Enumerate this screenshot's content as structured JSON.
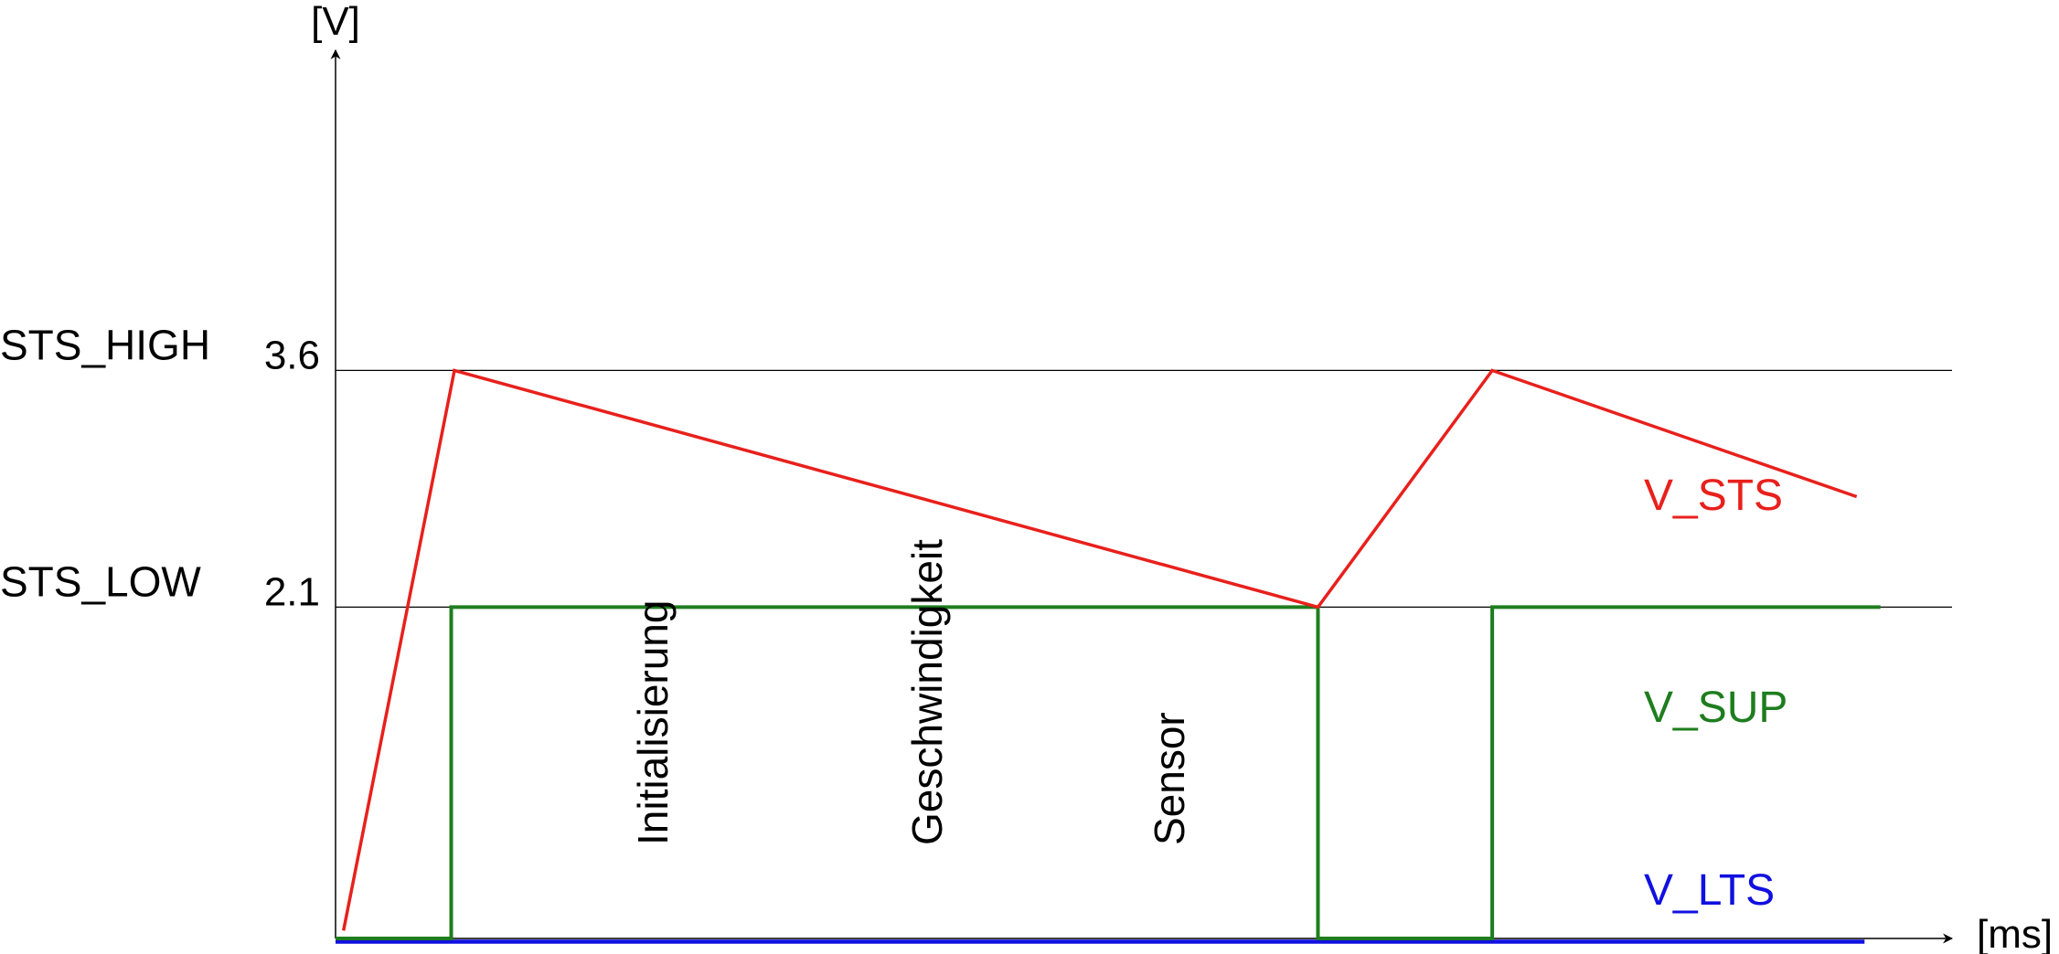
{
  "chart_data": {
    "type": "line",
    "title": "",
    "xlabel": "[ms]",
    "ylabel": "[V]",
    "xlim": [
      0,
      100
    ],
    "ylim": [
      0,
      5.6
    ],
    "grid": false,
    "thresholds": [
      {
        "name": "STS_HIGH",
        "value": 3.6,
        "tick_label": "3.6"
      },
      {
        "name": "STS_LOW",
        "value": 2.1,
        "tick_label": "2.1"
      }
    ],
    "phase_labels": [
      "Initialisierung",
      "Geschwindigkeit",
      "Sensor"
    ],
    "series": [
      {
        "name": "V_STS",
        "color": "#e8201c",
        "x": [
          0.5,
          7.5,
          62,
          73,
          96
        ],
        "y": [
          0.05,
          3.6,
          2.1,
          3.6,
          2.8
        ]
      },
      {
        "name": "V_SUP",
        "color": "#1e7d1e",
        "x": [
          0,
          7.3,
          7.3,
          62,
          62,
          73,
          73,
          97.5
        ],
        "y": [
          0.0,
          0.0,
          2.1,
          2.1,
          0.0,
          0.0,
          2.1,
          2.1
        ]
      },
      {
        "name": "V_LTS",
        "color": "#1010e0",
        "x": [
          0,
          96.5
        ],
        "y": [
          -0.02,
          -0.02
        ]
      }
    ]
  }
}
